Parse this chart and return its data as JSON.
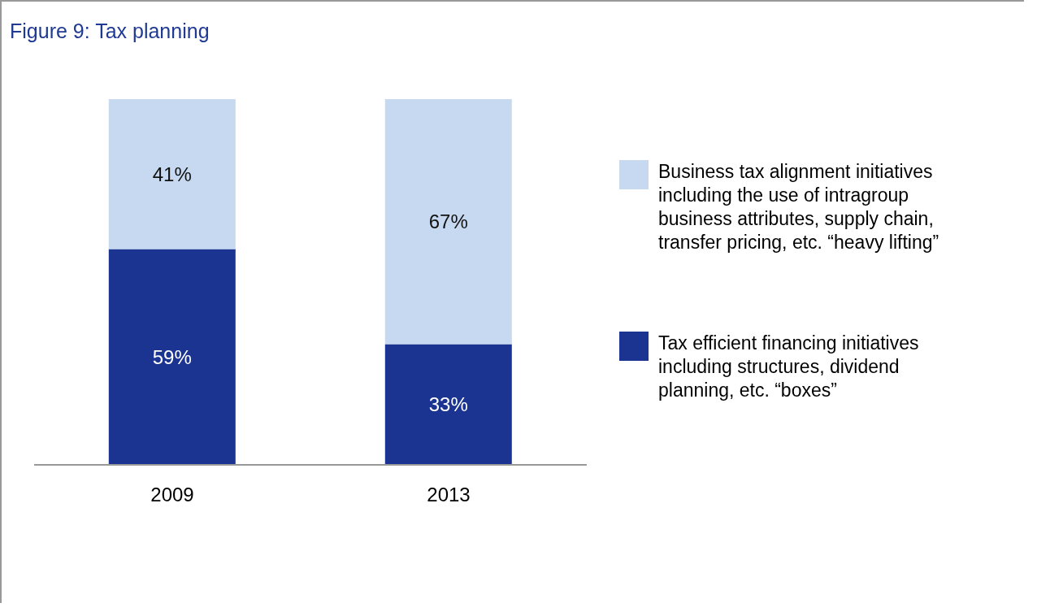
{
  "chart_data": {
    "type": "bar",
    "title": "Figure 9: Tax planning",
    "categories": [
      "2009",
      "2013"
    ],
    "stacked": true,
    "legend": "right",
    "series": [
      {
        "name": "Tax efficient financing initiatives including structures, dividend planning, etc. “boxes”",
        "color": "#1b3491",
        "values": [
          59,
          33
        ],
        "value_labels": [
          "59%",
          "33%"
        ]
      },
      {
        "name": "Business tax alignment initiatives including the use of intragroup business attributes, supply chain, transfer pricing, etc. “heavy lifting”",
        "color": "#c6d9f0",
        "values": [
          41,
          67
        ],
        "value_labels": [
          "41%",
          "67%"
        ]
      }
    ]
  }
}
